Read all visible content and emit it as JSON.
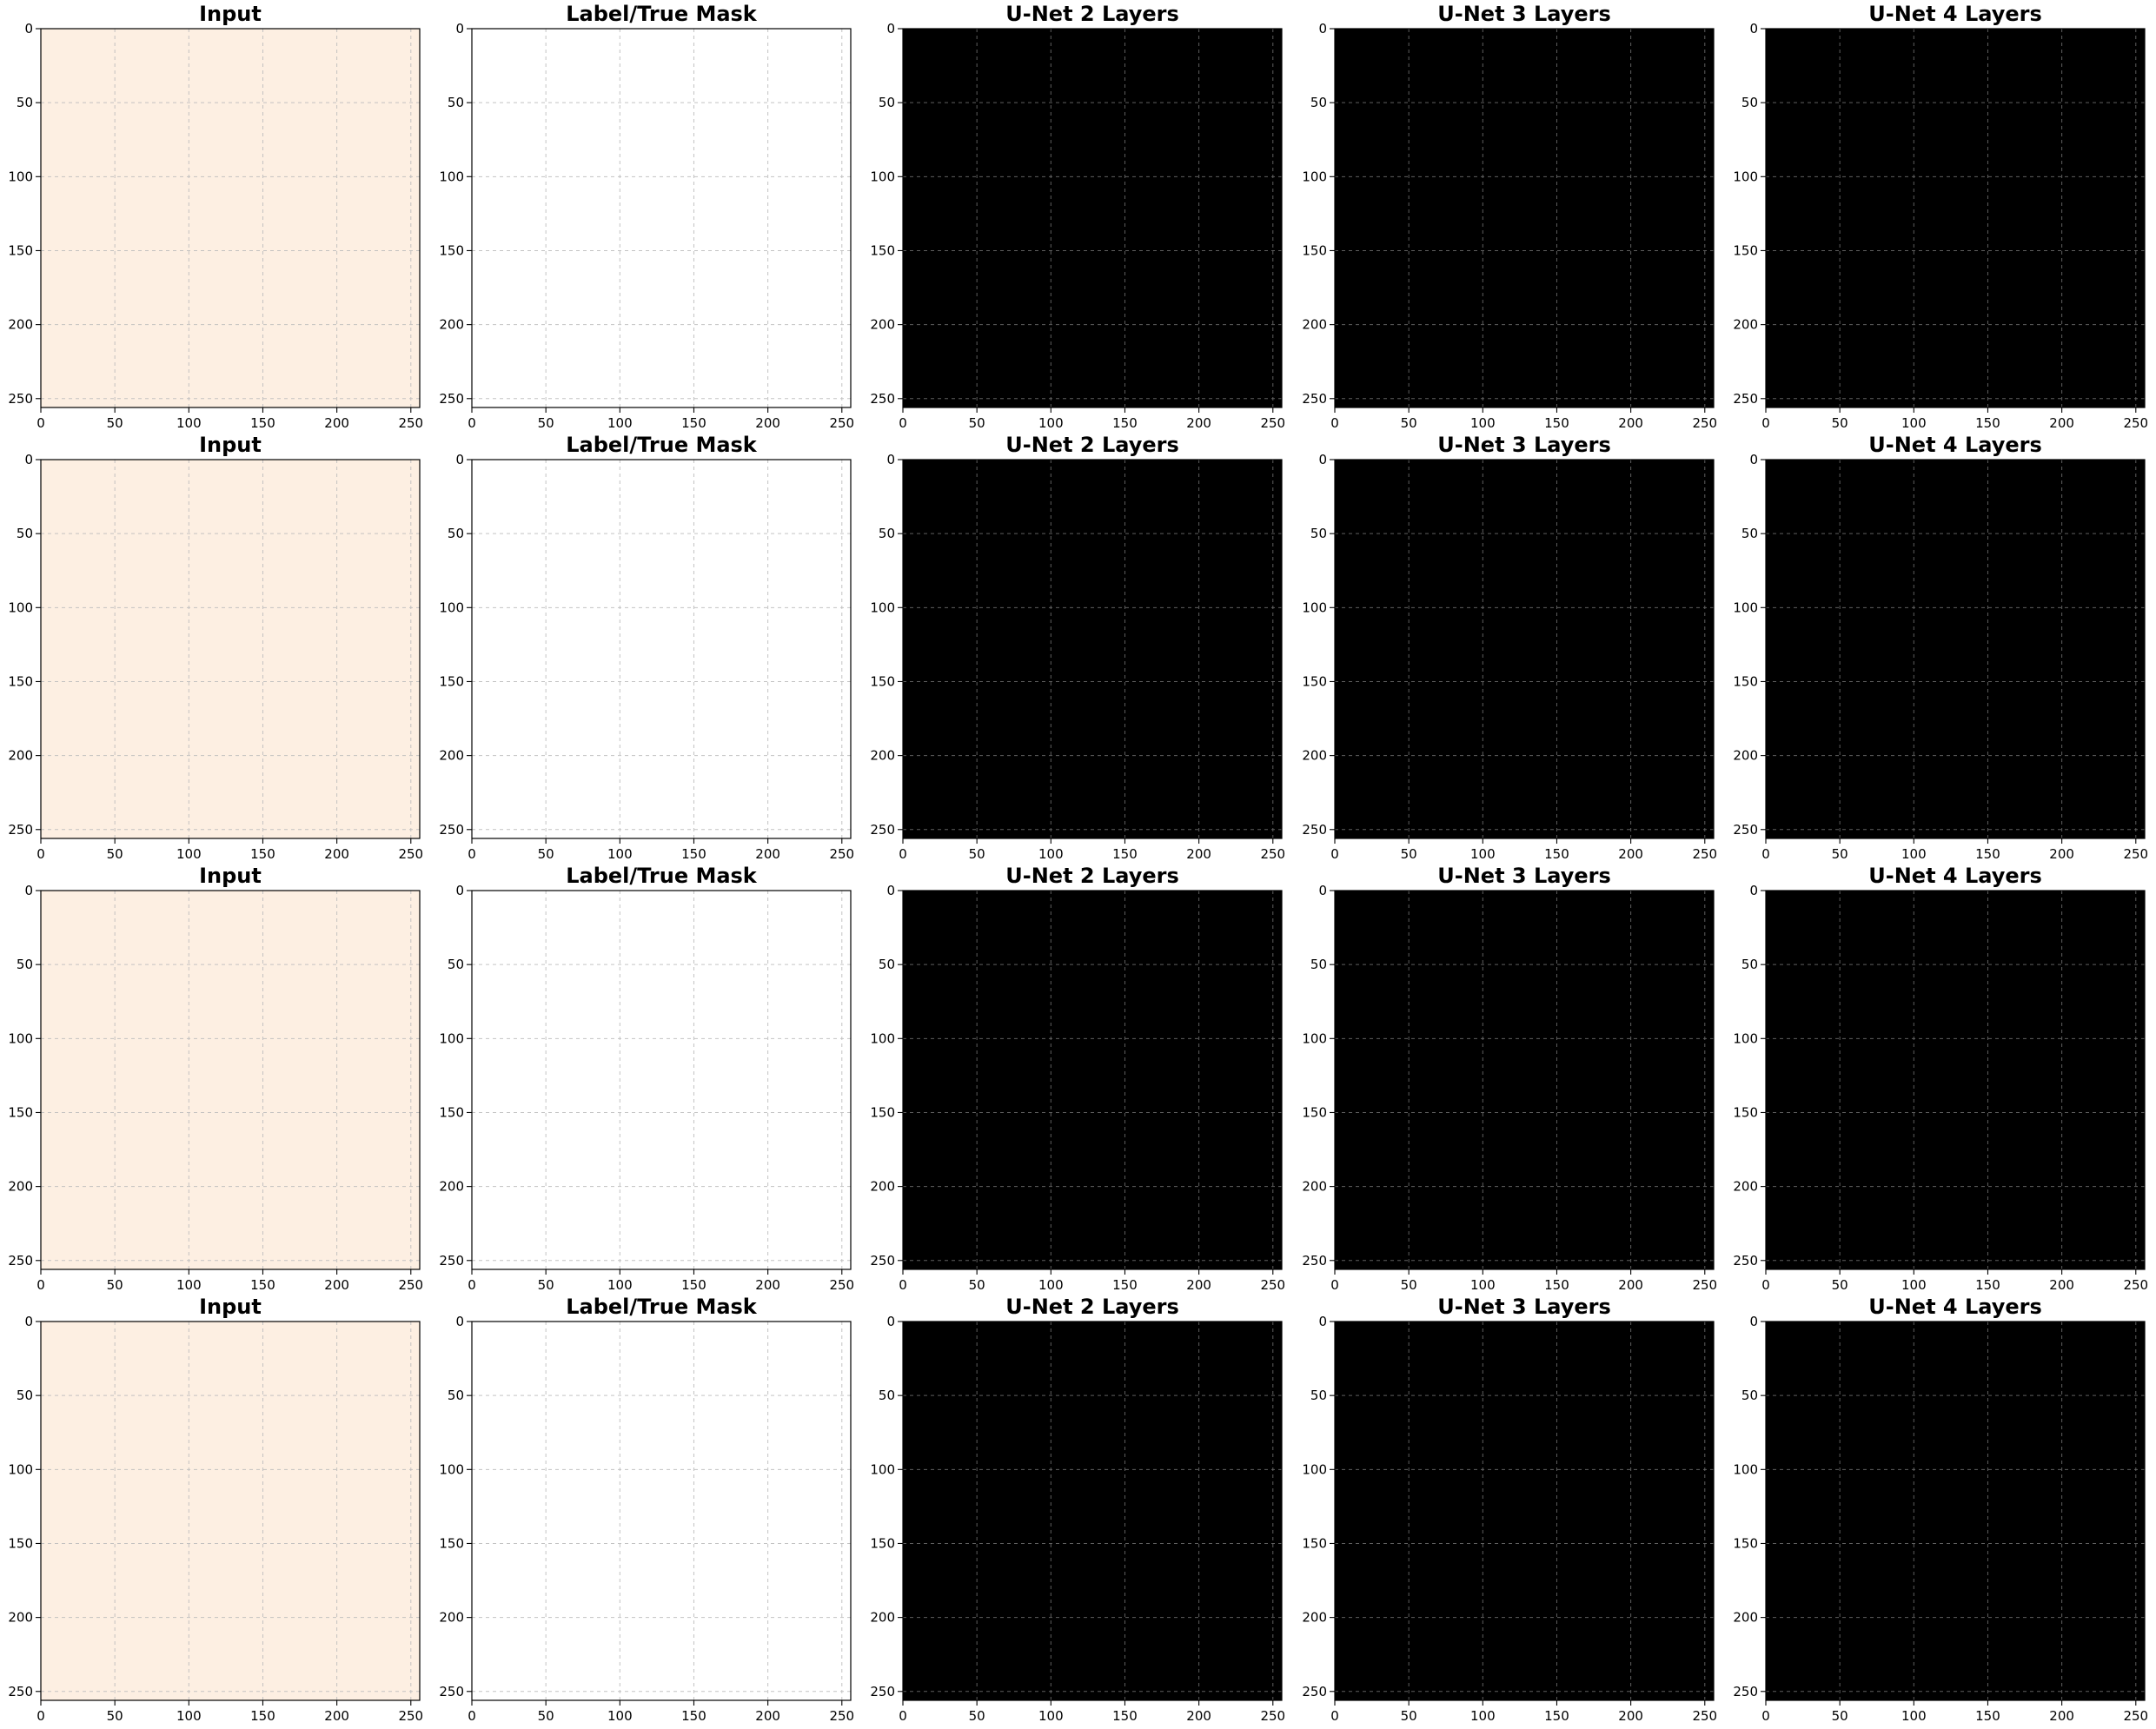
{
  "figure": {
    "panel_titles": [
      "Input",
      "Label/True Mask",
      "U-Net 2 Layers",
      "U-Net 3 Layers",
      "U-Net 4 Layers"
    ],
    "rows": [
      {
        "disc_side": "left"
      },
      {
        "disc_side": "right"
      },
      {
        "disc_side": "left"
      },
      {
        "disc_side": "left"
      }
    ],
    "axes": {
      "x_ticks": [
        "0",
        "50",
        "100",
        "150",
        "200",
        "250"
      ],
      "y_ticks": [
        "0",
        "50",
        "100",
        "150",
        "200",
        "250"
      ],
      "range": [
        0,
        256
      ],
      "grid": true
    },
    "colors": {
      "input_background": "#fdefe2",
      "fundus_light": "#f5a165",
      "fundus_main": "#ef7d35",
      "fundus_edge": "#e5671a",
      "optic_disc": "#4a2110",
      "mask_background": "#ffffff",
      "mask_vessel": "#111111",
      "prediction_background": "#000000",
      "prediction_vessel": "#ffffff"
    }
  }
}
